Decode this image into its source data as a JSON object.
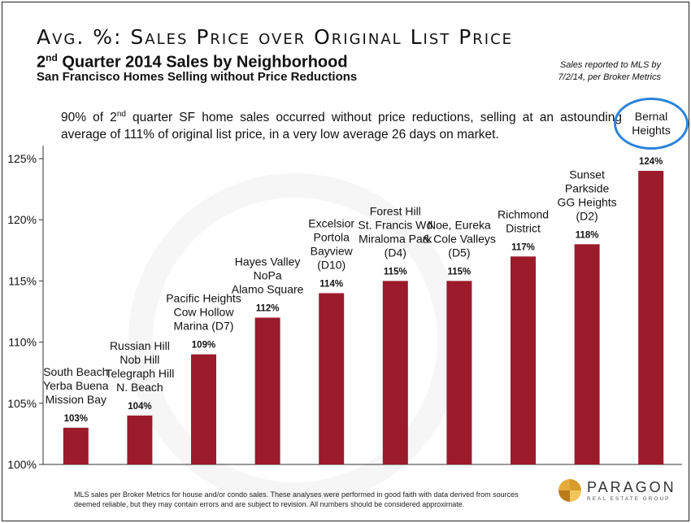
{
  "header": {
    "title": "Avg. %: Sales Price over Original List Price",
    "subtitle_prefix": "2",
    "subtitle_sup": "nd",
    "subtitle_rest": " Quarter 2014 Sales by Neighborhood",
    "subtitle2": "San Francisco Homes Selling without Price Reductions",
    "source_line1": "Sales reported to MLS by",
    "source_line2": "7/2/14, per Broker Metrics"
  },
  "summary": {
    "part1": "90% of 2",
    "sup": "nd",
    "part2": " quarter SF home sales occurred without price reductions, selling at an astounding average of 111% of original list price, in a very low average 26 days on market."
  },
  "highlight": {
    "line1": "Bernal",
    "line2": "Heights"
  },
  "chart_data": {
    "type": "bar",
    "categories": [
      [
        "South Beach",
        "Yerba Buena",
        "Mission Bay"
      ],
      [
        "Russian Hill",
        "Nob Hill",
        "Telegraph Hill",
        "N. Beach"
      ],
      [
        "Pacific Heights",
        "Cow Hollow",
        "Marina (D7)"
      ],
      [
        "Hayes Valley",
        "NoPa",
        "Alamo Square"
      ],
      [
        "Excelsior",
        "Portola",
        "Bayview",
        "(D10)"
      ],
      [
        "Forest Hill",
        "St. Francis Wd",
        "Miraloma Park",
        "(D4)"
      ],
      [
        "Noe, Eureka",
        "& Cole Valleys",
        "(D5)"
      ],
      [
        "Richmond",
        "District"
      ],
      [
        "Sunset",
        "Parkside",
        "GG Heights",
        "(D2)"
      ],
      [
        "Bernal Heights"
      ]
    ],
    "values": [
      103,
      104,
      109,
      112,
      114,
      115,
      115,
      117,
      118,
      124
    ],
    "value_labels": [
      "103%",
      "104%",
      "109%",
      "112%",
      "114%",
      "115%",
      "115%",
      "117%",
      "118%",
      "124%"
    ],
    "ylim": [
      100,
      126
    ],
    "yticks": [
      100,
      105,
      110,
      115,
      120,
      125
    ],
    "ytick_labels": [
      "100%",
      "105%",
      "110%",
      "115%",
      "120%",
      "125%"
    ],
    "bar_color": "#9b1b2b"
  },
  "footer": {
    "note": "MLS sales per Broker Metrics for house and/or condo sales. These analyses were performed in good faith with data derived from sources deemed reliable, but they may contain errors and are subject to revision. All numbers should be considered approximate.",
    "brand": "PARAGON",
    "brand_sub": "REAL ESTATE GROUP"
  }
}
